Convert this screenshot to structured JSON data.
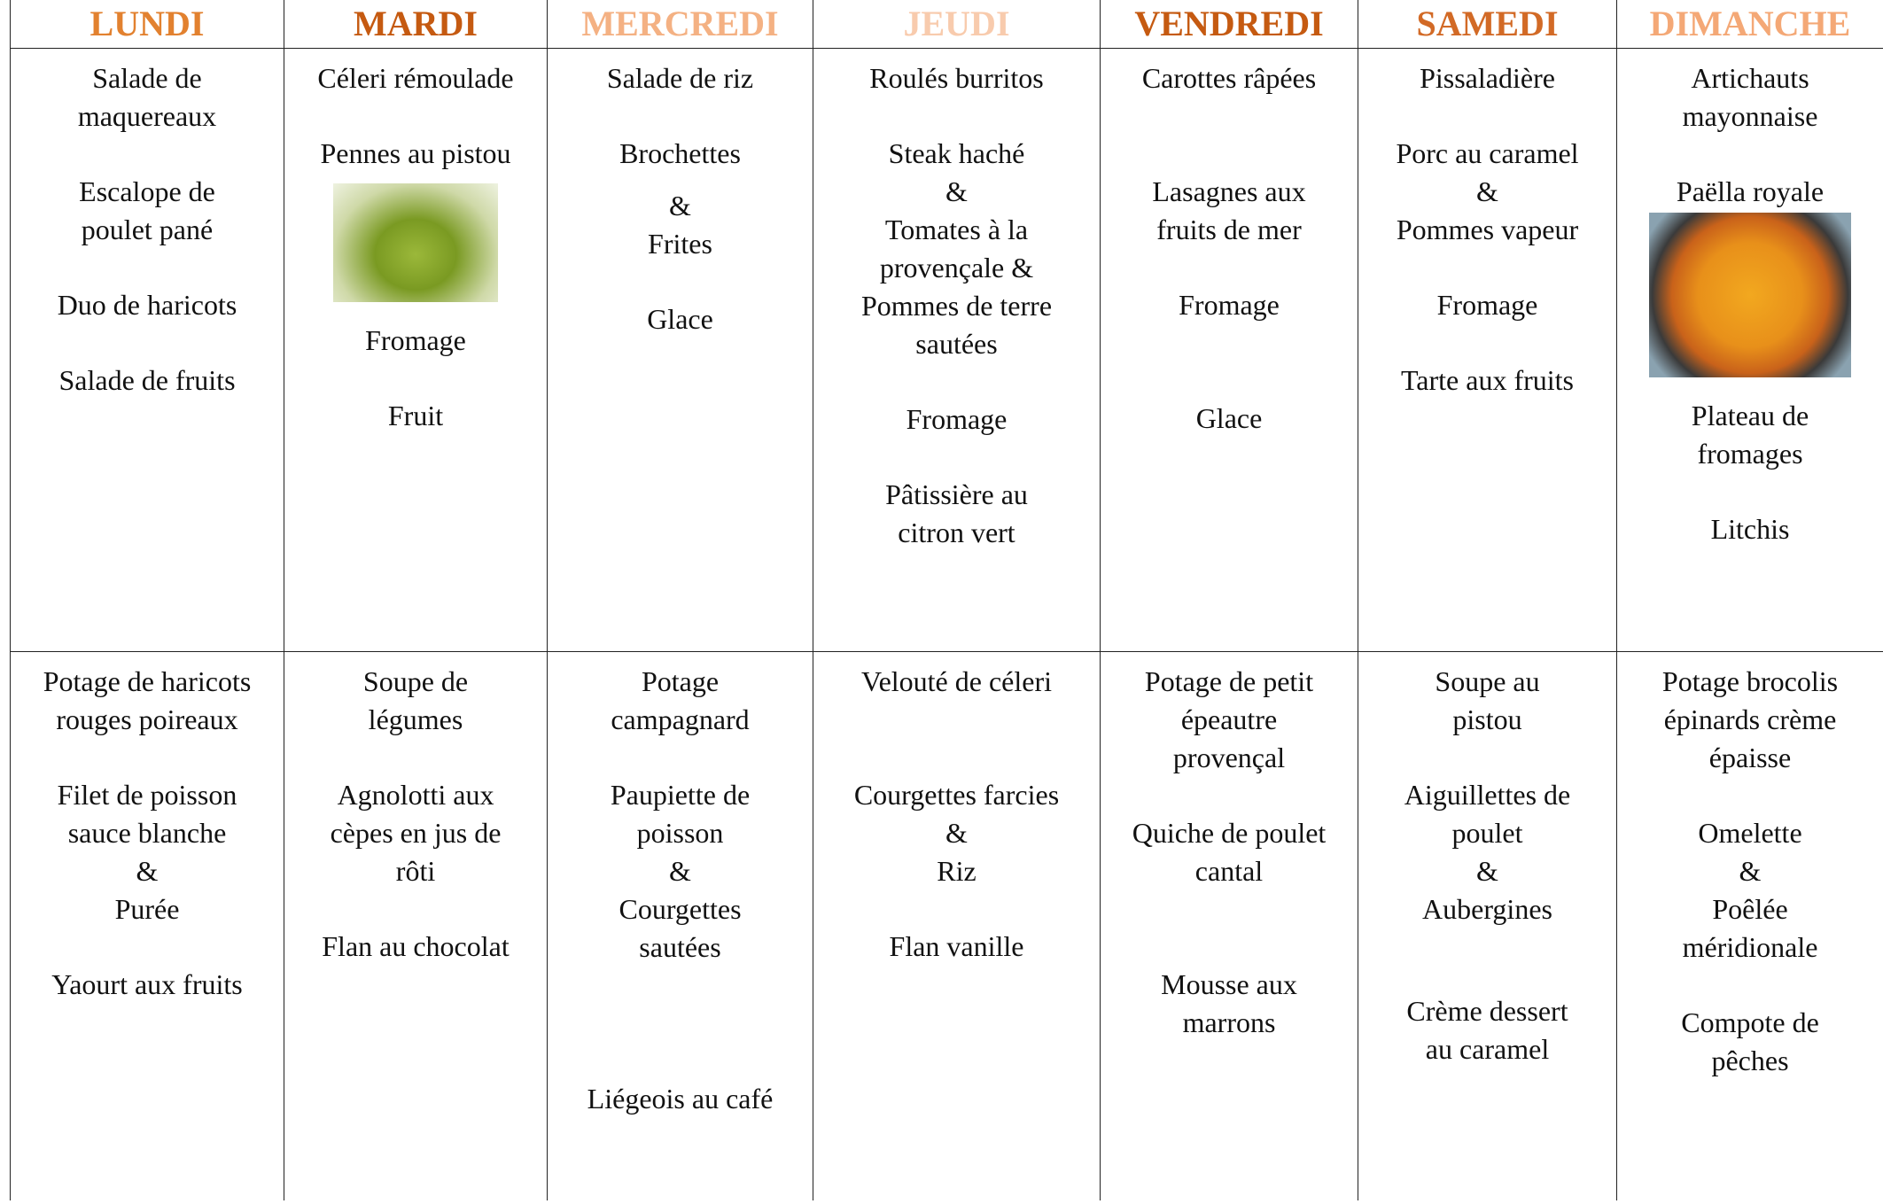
{
  "days": [
    "LUNDI",
    "MARDI",
    "MERCREDI",
    "JEUDI",
    "VENDREDI",
    "SAMEDI",
    "DIMANCHE"
  ],
  "rows": [
    [
      [
        [
          "Salade de",
          "maquereaux"
        ],
        [
          "Escalope de",
          "poulet pané"
        ],
        [
          "Duo de haricots"
        ],
        [
          "Salade de fruits"
        ]
      ],
      [
        [
          "Céleri rémoulade"
        ],
        [
          "Pennes au pistou"
        ],
        [
          "Fromage"
        ],
        [
          "Fruit"
        ]
      ],
      [
        [
          "Salade de riz"
        ],
        [
          "Brochettes"
        ],
        [
          "&",
          "Frites"
        ],
        [
          "Glace"
        ]
      ],
      [
        [
          "Roulés burritos"
        ],
        [
          "Steak haché",
          "&",
          "Tomates à la",
          "provençale &",
          "Pommes de terre",
          "sautées"
        ],
        [
          "Fromage"
        ],
        [
          "Pâtissière au",
          "citron vert"
        ]
      ],
      [
        [
          "Carottes râpées"
        ],
        [
          "Lasagnes aux",
          "fruits de mer"
        ],
        [
          "Fromage"
        ],
        [
          "Glace"
        ]
      ],
      [
        [
          "Pissaladière"
        ],
        [
          "Porc au caramel",
          "&",
          "Pommes vapeur"
        ],
        [
          "Fromage"
        ],
        [
          "Tarte aux fruits"
        ]
      ],
      [
        [
          "Artichauts",
          "mayonnaise"
        ],
        [
          "Paëlla royale"
        ],
        [
          "Plateau de",
          "fromages"
        ],
        [
          "Litchis"
        ]
      ]
    ],
    [
      [
        [
          "Potage de haricots",
          "rouges poireaux"
        ],
        [
          "Filet de poisson",
          "sauce blanche",
          "&",
          "Purée"
        ],
        [
          "Yaourt aux fruits"
        ]
      ],
      [
        [
          "Soupe de",
          "légumes"
        ],
        [
          "Agnolotti aux",
          "cèpes en jus de",
          "rôti"
        ],
        [
          "Flan au chocolat"
        ]
      ],
      [
        [
          "Potage",
          "campagnard"
        ],
        [
          "Paupiette de",
          "poisson",
          "&",
          "Courgettes",
          "sautées"
        ],
        [
          "Liégeois au café"
        ]
      ],
      [
        [
          "Velouté de céleri"
        ],
        [
          "Courgettes farcies",
          "&",
          "Riz"
        ],
        [
          "Flan vanille"
        ]
      ],
      [
        [
          "Potage de petit",
          "épeautre",
          "provençal"
        ],
        [
          "Quiche de poulet",
          "cantal"
        ],
        [
          "Mousse aux",
          "marrons"
        ]
      ],
      [
        [
          "Soupe au",
          "pistou"
        ],
        [
          "Aiguillettes de",
          "poulet",
          "&",
          "Aubergines"
        ],
        [
          "Crème dessert",
          "au caramel"
        ]
      ],
      [
        [
          "Potage brocolis",
          "épinards crème",
          "épaisse"
        ],
        [
          "Omelette",
          "&",
          "Poêlée",
          "méridionale"
        ],
        [
          "Compote de",
          "pêches"
        ]
      ]
    ]
  ]
}
